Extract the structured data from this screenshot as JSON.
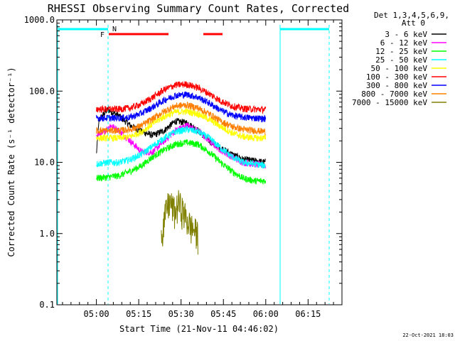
{
  "chart_data": {
    "type": "line",
    "title": "RHESSI Observing Summary Count Rates, Corrected",
    "xlabel": "Start Time (21-Nov-11 04:46:02)",
    "ylabel": "Corrected Count Rate (s⁻¹ detector⁻¹)",
    "y_scale": "log",
    "ylim": [
      0.1,
      1000
    ],
    "x_start": "04:46:02",
    "xlim_minutes": [
      0,
      101
    ],
    "x_tick_minutes": [
      14,
      29,
      44,
      59,
      74,
      89
    ],
    "x_tick_labels": [
      "05:00",
      "05:15",
      "05:30",
      "05:45",
      "06:00",
      "06:15"
    ],
    "y_tick_values": [
      0.1,
      1,
      10,
      100,
      1000
    ],
    "y_tick_labels": [
      "0.1",
      "1.0",
      "10.0",
      "100.0",
      "1000.0"
    ],
    "legend_header": [
      "Det 1,3,4,5,6,9,",
      "Att 0"
    ],
    "legend_position": "outside-right",
    "timestamp": "22-Oct-2021 18:03",
    "flag_labels": {
      "flare": "F",
      "night": "N"
    },
    "series": [
      {
        "name": "3 - 6 keV",
        "color": "#000000",
        "points": [
          [
            14,
            13
          ],
          [
            15,
            40
          ],
          [
            18,
            55
          ],
          [
            22,
            45
          ],
          [
            26,
            33
          ],
          [
            30,
            27
          ],
          [
            34,
            24
          ],
          [
            38,
            28
          ],
          [
            42,
            38
          ],
          [
            46,
            36
          ],
          [
            50,
            28
          ],
          [
            54,
            20
          ],
          [
            58,
            16
          ],
          [
            62,
            13
          ],
          [
            66,
            11
          ],
          [
            70,
            10.5
          ],
          [
            74,
            10
          ]
        ]
      },
      {
        "name": "6 - 12 keV",
        "color": "#ff00ff",
        "points": [
          [
            14,
            25
          ],
          [
            16,
            25
          ],
          [
            19,
            33
          ],
          [
            22,
            28
          ],
          [
            26,
            20
          ],
          [
            30,
            14
          ],
          [
            34,
            14
          ],
          [
            38,
            20
          ],
          [
            42,
            28
          ],
          [
            46,
            33
          ],
          [
            50,
            28
          ],
          [
            54,
            20
          ],
          [
            58,
            15
          ],
          [
            62,
            12
          ],
          [
            66,
            10
          ],
          [
            70,
            9.5
          ],
          [
            74,
            9
          ]
        ]
      },
      {
        "name": "12 - 25 keV",
        "color": "#00ff00",
        "points": [
          [
            14,
            6
          ],
          [
            18,
            6.2
          ],
          [
            22,
            6.5
          ],
          [
            26,
            7.5
          ],
          [
            30,
            9
          ],
          [
            34,
            12
          ],
          [
            38,
            15
          ],
          [
            42,
            18
          ],
          [
            46,
            19
          ],
          [
            50,
            18
          ],
          [
            54,
            14
          ],
          [
            58,
            10
          ],
          [
            62,
            7.5
          ],
          [
            66,
            6
          ],
          [
            70,
            5.5
          ],
          [
            74,
            5.5
          ]
        ]
      },
      {
        "name": "25 - 50 keV",
        "color": "#00ffff",
        "points": [
          [
            14,
            9.5
          ],
          [
            18,
            10
          ],
          [
            22,
            10
          ],
          [
            26,
            11
          ],
          [
            30,
            13
          ],
          [
            34,
            17
          ],
          [
            38,
            22
          ],
          [
            42,
            27
          ],
          [
            46,
            29
          ],
          [
            50,
            27
          ],
          [
            54,
            22
          ],
          [
            58,
            16
          ],
          [
            62,
            12
          ],
          [
            66,
            10
          ],
          [
            70,
            9.5
          ],
          [
            74,
            9
          ]
        ]
      },
      {
        "name": "50 - 100 keV",
        "color": "#ffff00",
        "points": [
          [
            14,
            22
          ],
          [
            18,
            22
          ],
          [
            22,
            22
          ],
          [
            26,
            23
          ],
          [
            30,
            27
          ],
          [
            34,
            35
          ],
          [
            38,
            44
          ],
          [
            42,
            51
          ],
          [
            46,
            52
          ],
          [
            50,
            48
          ],
          [
            54,
            40
          ],
          [
            58,
            32
          ],
          [
            62,
            26
          ],
          [
            66,
            23
          ],
          [
            70,
            22
          ],
          [
            74,
            22
          ]
        ]
      },
      {
        "name": "100 - 300 keV",
        "color": "#ff0000",
        "points": [
          [
            14,
            56
          ],
          [
            18,
            56
          ],
          [
            22,
            56
          ],
          [
            26,
            58
          ],
          [
            30,
            66
          ],
          [
            34,
            82
          ],
          [
            38,
            105
          ],
          [
            42,
            122
          ],
          [
            46,
            125
          ],
          [
            50,
            112
          ],
          [
            54,
            92
          ],
          [
            58,
            73
          ],
          [
            62,
            62
          ],
          [
            66,
            57
          ],
          [
            70,
            56
          ],
          [
            74,
            55
          ]
        ]
      },
      {
        "name": "300 - 800 keV",
        "color": "#0000ff",
        "points": [
          [
            14,
            42
          ],
          [
            18,
            42
          ],
          [
            22,
            42
          ],
          [
            26,
            43
          ],
          [
            30,
            49
          ],
          [
            34,
            60
          ],
          [
            38,
            75
          ],
          [
            42,
            87
          ],
          [
            46,
            90
          ],
          [
            50,
            82
          ],
          [
            54,
            68
          ],
          [
            58,
            54
          ],
          [
            62,
            46
          ],
          [
            66,
            43
          ],
          [
            70,
            42
          ],
          [
            74,
            41
          ]
        ]
      },
      {
        "name": "800 - 7000 keV",
        "color": "#ff8000",
        "points": [
          [
            14,
            28
          ],
          [
            18,
            28
          ],
          [
            22,
            28
          ],
          [
            26,
            29
          ],
          [
            30,
            33
          ],
          [
            34,
            41
          ],
          [
            38,
            52
          ],
          [
            42,
            62
          ],
          [
            46,
            64
          ],
          [
            50,
            58
          ],
          [
            54,
            48
          ],
          [
            58,
            38
          ],
          [
            62,
            32
          ],
          [
            66,
            29
          ],
          [
            70,
            28
          ],
          [
            74,
            27
          ]
        ]
      },
      {
        "name": "7000 - 15000 keV",
        "color": "#808000",
        "points": [
          [
            37,
            1
          ],
          [
            38,
            1.5
          ],
          [
            39,
            2.4
          ],
          [
            40,
            2.8
          ],
          [
            41,
            2.4
          ],
          [
            42,
            2.0
          ],
          [
            43,
            2.8
          ],
          [
            44,
            2.4
          ],
          [
            45,
            2.0
          ],
          [
            46,
            1.6
          ],
          [
            48,
            1.2
          ],
          [
            50,
            1.0
          ]
        ]
      }
    ]
  }
}
